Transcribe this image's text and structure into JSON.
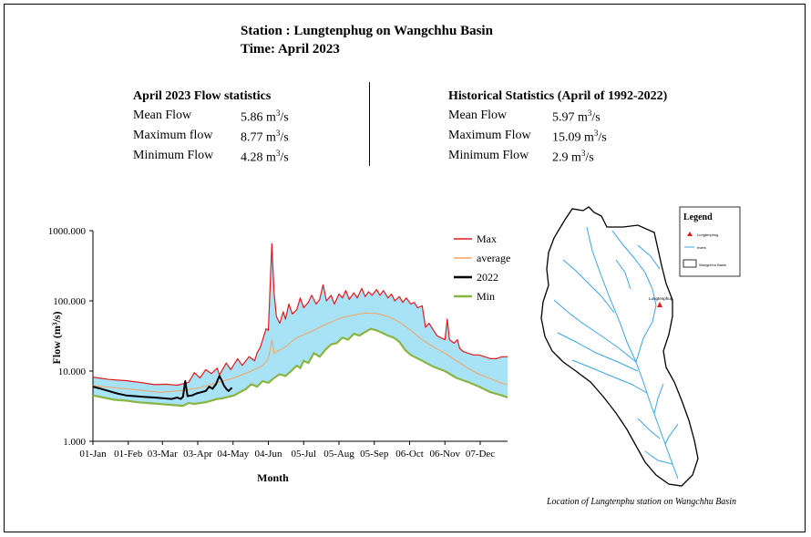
{
  "header": {
    "station": "Station : Lungtenphug on Wangchhu Basin",
    "time": "Time: April 2023"
  },
  "current_stats": {
    "heading": "April 2023 Flow statistics",
    "rows": [
      {
        "label": "Mean Flow",
        "value": "5.86"
      },
      {
        "label": "Maximum flow",
        "value": "8.77"
      },
      {
        "label": "Minimum Flow",
        "value": "4.28"
      }
    ]
  },
  "historical_stats": {
    "heading": "Historical Statistics (April of 1992-2022)",
    "rows": [
      {
        "label": "Mean Flow",
        "value": "5.97"
      },
      {
        "label": "Maximum Flow",
        "value": "15.09"
      },
      {
        "label": "Minimum Flow",
        "value": "2.9"
      }
    ]
  },
  "unit": {
    "base": "m",
    "exp": "3",
    "tail": "/s"
  },
  "chart_data": {
    "type": "line",
    "xlabel": "Month",
    "ylabel": "Flow (m³/s)",
    "yscale": "log",
    "ylim": [
      1,
      1000
    ],
    "yticks": [
      "1.000",
      "10.000",
      "100.000",
      "1000.000"
    ],
    "xlim": [
      1,
      365
    ],
    "xticks": [
      {
        "day": 1,
        "label": "01-Jan"
      },
      {
        "day": 32,
        "label": "01-Feb"
      },
      {
        "day": 62,
        "label": "03-Mar"
      },
      {
        "day": 93,
        "label": "03-Apr"
      },
      {
        "day": 124,
        "label": "04-May"
      },
      {
        "day": 155,
        "label": "04-Jun"
      },
      {
        "day": 186,
        "label": "05-Jul"
      },
      {
        "day": 217,
        "label": "05-Aug"
      },
      {
        "day": 248,
        "label": "05-Sep"
      },
      {
        "day": 279,
        "label": "06-Oct"
      },
      {
        "day": 310,
        "label": "06-Nov"
      },
      {
        "day": 341,
        "label": "07-Dec"
      }
    ],
    "band_color": "#a8e2f7",
    "legend_position": "top-right",
    "series": [
      {
        "name": "Max",
        "color": "#e31a1c",
        "width": 1.2,
        "points": [
          [
            1,
            8.2
          ],
          [
            15,
            7.6
          ],
          [
            30,
            7.3
          ],
          [
            45,
            6.8
          ],
          [
            55,
            6.4
          ],
          [
            65,
            6.5
          ],
          [
            75,
            6.3
          ],
          [
            85,
            6.9
          ],
          [
            90,
            9.5
          ],
          [
            95,
            8.0
          ],
          [
            100,
            10.5
          ],
          [
            105,
            9.2
          ],
          [
            110,
            11
          ],
          [
            112,
            8.8
          ],
          [
            118,
            13
          ],
          [
            122,
            10.5
          ],
          [
            128,
            15
          ],
          [
            132,
            12
          ],
          [
            138,
            16
          ],
          [
            143,
            14
          ],
          [
            145,
            18
          ],
          [
            148,
            22
          ],
          [
            150,
            28
          ],
          [
            153,
            40
          ],
          [
            155,
            38
          ],
          [
            156,
            100
          ],
          [
            158,
            650
          ],
          [
            160,
            130
          ],
          [
            162,
            60
          ],
          [
            165,
            48
          ],
          [
            168,
            70
          ],
          [
            170,
            55
          ],
          [
            173,
            90
          ],
          [
            176,
            65
          ],
          [
            180,
            75
          ],
          [
            183,
            110
          ],
          [
            186,
            80
          ],
          [
            190,
            95
          ],
          [
            193,
            120
          ],
          [
            197,
            90
          ],
          [
            200,
            105
          ],
          [
            203,
            170
          ],
          [
            206,
            100
          ],
          [
            210,
            120
          ],
          [
            213,
            90
          ],
          [
            217,
            125
          ],
          [
            220,
            110
          ],
          [
            223,
            140
          ],
          [
            226,
            105
          ],
          [
            230,
            130
          ],
          [
            233,
            110
          ],
          [
            237,
            150
          ],
          [
            240,
            115
          ],
          [
            243,
            135
          ],
          [
            246,
            120
          ],
          [
            250,
            145
          ],
          [
            253,
            120
          ],
          [
            256,
            140
          ],
          [
            260,
            110
          ],
          [
            263,
            125
          ],
          [
            266,
            100
          ],
          [
            270,
            115
          ],
          [
            273,
            95
          ],
          [
            276,
            110
          ],
          [
            280,
            90
          ],
          [
            283,
            95
          ],
          [
            286,
            80
          ],
          [
            290,
            85
          ],
          [
            293,
            42
          ],
          [
            296,
            48
          ],
          [
            300,
            38
          ],
          [
            303,
            32
          ],
          [
            306,
            30
          ],
          [
            310,
            28
          ],
          [
            312,
            55
          ],
          [
            314,
            28
          ],
          [
            318,
            25
          ],
          [
            321,
            28
          ],
          [
            323,
            21
          ],
          [
            326,
            19
          ],
          [
            330,
            18
          ],
          [
            335,
            17
          ],
          [
            340,
            17
          ],
          [
            345,
            16
          ],
          [
            350,
            15
          ],
          [
            355,
            15
          ],
          [
            360,
            16
          ],
          [
            365,
            16
          ]
        ]
      },
      {
        "name": "average",
        "color": "#f4a460",
        "width": 1.0,
        "points": [
          [
            1,
            6.2
          ],
          [
            20,
            5.8
          ],
          [
            40,
            5.4
          ],
          [
            60,
            5.0
          ],
          [
            80,
            5.3
          ],
          [
            95,
            5.8
          ],
          [
            110,
            6.8
          ],
          [
            125,
            8.0
          ],
          [
            140,
            10
          ],
          [
            150,
            12
          ],
          [
            155,
            15
          ],
          [
            158,
            28
          ],
          [
            160,
            18
          ],
          [
            165,
            20
          ],
          [
            170,
            22
          ],
          [
            175,
            26
          ],
          [
            180,
            30
          ],
          [
            190,
            35
          ],
          [
            200,
            42
          ],
          [
            210,
            50
          ],
          [
            220,
            58
          ],
          [
            230,
            63
          ],
          [
            240,
            67
          ],
          [
            250,
            66
          ],
          [
            260,
            60
          ],
          [
            270,
            50
          ],
          [
            280,
            38
          ],
          [
            290,
            28
          ],
          [
            300,
            22
          ],
          [
            310,
            18
          ],
          [
            320,
            14
          ],
          [
            330,
            11
          ],
          [
            340,
            9
          ],
          [
            350,
            7.8
          ],
          [
            360,
            6.7
          ],
          [
            365,
            6.4
          ]
        ]
      },
      {
        "name": "2022",
        "color": "#000000",
        "width": 2.0,
        "points": [
          [
            1,
            6
          ],
          [
            8,
            5.6
          ],
          [
            15,
            5.2
          ],
          [
            22,
            4.8
          ],
          [
            30,
            4.5
          ],
          [
            38,
            4.4
          ],
          [
            45,
            4.3
          ],
          [
            55,
            4.2
          ],
          [
            62,
            4.1
          ],
          [
            70,
            4.0
          ],
          [
            75,
            4.2
          ],
          [
            78,
            4.0
          ],
          [
            80,
            4.3
          ],
          [
            82,
            7.2
          ],
          [
            84,
            4.4
          ],
          [
            88,
            4.5
          ],
          [
            92,
            4.8
          ],
          [
            96,
            5.0
          ],
          [
            100,
            5.2
          ],
          [
            103,
            6.0
          ],
          [
            106,
            5.6
          ],
          [
            109,
            6.5
          ],
          [
            112,
            8.5
          ],
          [
            114,
            7.4
          ],
          [
            116,
            6.2
          ],
          [
            118,
            5.6
          ],
          [
            120,
            5.2
          ],
          [
            123,
            5.8
          ]
        ]
      },
      {
        "name": "Min",
        "color": "#8bb542",
        "width": 2.2,
        "points": [
          [
            1,
            4.5
          ],
          [
            10,
            4.2
          ],
          [
            20,
            3.9
          ],
          [
            30,
            3.8
          ],
          [
            40,
            3.6
          ],
          [
            50,
            3.5
          ],
          [
            60,
            3.4
          ],
          [
            70,
            3.3
          ],
          [
            80,
            3.2
          ],
          [
            85,
            3.5
          ],
          [
            90,
            3.4
          ],
          [
            95,
            3.5
          ],
          [
            100,
            3.6
          ],
          [
            105,
            3.8
          ],
          [
            110,
            4.0
          ],
          [
            115,
            4.1
          ],
          [
            120,
            4.3
          ],
          [
            125,
            4.5
          ],
          [
            130,
            5.0
          ],
          [
            135,
            5.5
          ],
          [
            140,
            6.5
          ],
          [
            145,
            6.0
          ],
          [
            150,
            7.2
          ],
          [
            155,
            6.8
          ],
          [
            160,
            8
          ],
          [
            165,
            9
          ],
          [
            170,
            8.5
          ],
          [
            175,
            10
          ],
          [
            180,
            12
          ],
          [
            183,
            11
          ],
          [
            186,
            14
          ],
          [
            190,
            13
          ],
          [
            195,
            18
          ],
          [
            200,
            16
          ],
          [
            205,
            20
          ],
          [
            210,
            24
          ],
          [
            215,
            25
          ],
          [
            220,
            30
          ],
          [
            225,
            28
          ],
          [
            230,
            34
          ],
          [
            235,
            32
          ],
          [
            240,
            36
          ],
          [
            245,
            40
          ],
          [
            250,
            38
          ],
          [
            255,
            35
          ],
          [
            260,
            32
          ],
          [
            265,
            30
          ],
          [
            270,
            26
          ],
          [
            275,
            20
          ],
          [
            280,
            17
          ],
          [
            290,
            14
          ],
          [
            300,
            11.5
          ],
          [
            310,
            10
          ],
          [
            320,
            8
          ],
          [
            330,
            7
          ],
          [
            340,
            6
          ],
          [
            350,
            5
          ],
          [
            360,
            4.5
          ],
          [
            365,
            4.2
          ]
        ]
      }
    ]
  },
  "map": {
    "legend_title": "Legend",
    "legend_items": [
      {
        "label": "Lungtenphug",
        "color": "#e31a1c"
      },
      {
        "label": "rivers",
        "color": "#3ba4e0"
      },
      {
        "label": "Wangchhu Basin",
        "color": "#000000"
      }
    ],
    "station_label": "Lungtenphug",
    "river_color": "#3ba4e0"
  },
  "caption": "Location of Lungtenphu station on Wangchhu Basin"
}
